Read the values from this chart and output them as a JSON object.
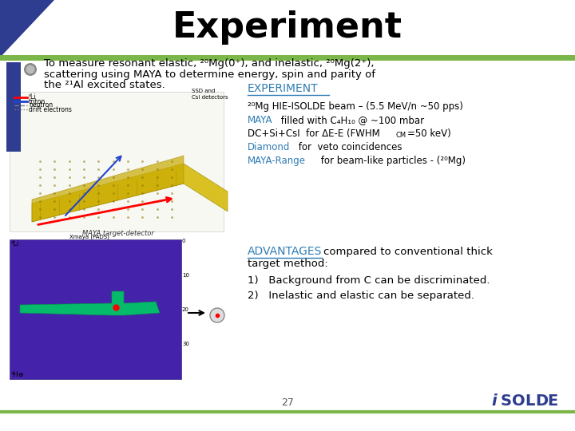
{
  "title": "Experiment",
  "title_fontsize": 32,
  "title_fontweight": "bold",
  "background_color": "#ffffff",
  "header_triangle_color": "#2e3d8f",
  "header_line_color": "#7ab648",
  "bullet_text_line1": "To measure resonant elastic, ²⁰Mg(0⁺), and inelastic, ²⁰Mg(2⁺),",
  "bullet_text_line2": "scattering using MAYA to determine energy, spin and parity of",
  "bullet_text_line3": "the ²¹Al excited states.",
  "left_bar_color": "#2e3d8f",
  "experiment_label": "EXPERIMENT",
  "advantages_label": "ADVANTAGES",
  "page_number": "27",
  "header_line_color2": "#7ab648",
  "blue_color": "#2e7bb5",
  "dark_blue": "#2e3d8f",
  "green_line": "#7ab648"
}
